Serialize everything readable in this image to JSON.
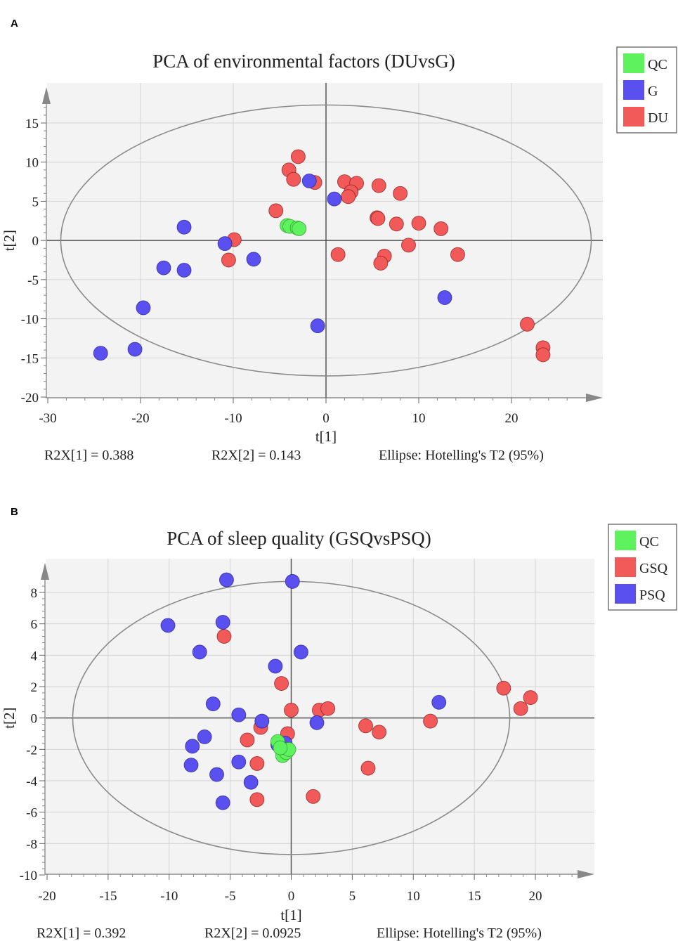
{
  "chart_data": [
    {
      "panel": "A",
      "type": "scatter",
      "title": "PCA of environmental factors (DUvsG)",
      "xlabel": "t[1]",
      "ylabel": "t[2]",
      "xlim": [
        -30,
        30
      ],
      "ylim": [
        -20,
        17
      ],
      "xticks": [
        -30,
        -20,
        -10,
        0,
        10,
        20
      ],
      "yticks": [
        -20,
        -15,
        -10,
        -5,
        0,
        5,
        10,
        15
      ],
      "ellipse": {
        "rx": 28.6,
        "ry": 17.3
      },
      "footer": [
        "R2X[1] = 0.388",
        "R2X[2] = 0.143",
        "Ellipse: Hotelling's T2 (95%)"
      ],
      "legend": [
        {
          "name": "QC",
          "color": "#5ef35e"
        },
        {
          "name": "G",
          "color": "#5a50f0"
        },
        {
          "name": "DU",
          "color": "#f25a5a"
        }
      ],
      "series": [
        {
          "name": "DU",
          "color": "#f25a5a",
          "points": [
            [
              -3,
              10.7
            ],
            [
              -4,
              9
            ],
            [
              -3.5,
              7.8
            ],
            [
              -1.2,
              7.4
            ],
            [
              2,
              7.5
            ],
            [
              3.3,
              7.3
            ],
            [
              2.7,
              6.2
            ],
            [
              2.4,
              5.6
            ],
            [
              5.7,
              7
            ],
            [
              8,
              6
            ],
            [
              -5.4,
              3.8
            ],
            [
              5.5,
              2.9
            ],
            [
              5.6,
              2.8
            ],
            [
              7.6,
              2.1
            ],
            [
              10,
              2.2
            ],
            [
              12.4,
              1.5
            ],
            [
              -9.9,
              0.1
            ],
            [
              -10.5,
              -2.5
            ],
            [
              8.9,
              -0.6
            ],
            [
              1.3,
              -1.8
            ],
            [
              6.3,
              -2
            ],
            [
              5.9,
              -2.9
            ],
            [
              14.2,
              -1.8
            ],
            [
              21.7,
              -10.7
            ],
            [
              23.4,
              -13.7
            ],
            [
              23.4,
              -14.6
            ]
          ]
        },
        {
          "name": "G",
          "color": "#5a50f0",
          "points": [
            [
              -1.8,
              7.6
            ],
            [
              0.9,
              5.3
            ],
            [
              -15.3,
              1.7
            ],
            [
              -10.9,
              -0.4
            ],
            [
              -7.8,
              -2.4
            ],
            [
              -17.5,
              -3.5
            ],
            [
              -15.3,
              -3.8
            ],
            [
              -19.7,
              -8.6
            ],
            [
              -0.9,
              -10.9
            ],
            [
              12.8,
              -7.3
            ],
            [
              -24.3,
              -14.4
            ],
            [
              -20.6,
              -13.9
            ]
          ]
        },
        {
          "name": "QC",
          "color": "#5ef35e",
          "points": [
            [
              -4.2,
              1.9
            ],
            [
              -3.9,
              1.8
            ],
            [
              -3.1,
              1.6
            ],
            [
              -2.9,
              1.5
            ]
          ]
        }
      ]
    },
    {
      "panel": "B",
      "type": "scatter",
      "title": "PCA of sleep quality (GSQvsPSQ)",
      "xlabel": "t[1]",
      "ylabel": "t[2]",
      "xlim": [
        -20,
        24
      ],
      "ylim": [
        -10,
        9.6
      ],
      "xticks": [
        -20,
        -15,
        -10,
        -5,
        0,
        5,
        10,
        15,
        20
      ],
      "yticks": [
        -10,
        -8,
        -6,
        -4,
        -2,
        0,
        2,
        4,
        6,
        8
      ],
      "ellipse": {
        "rx": 17.9,
        "ry": 8.7
      },
      "footer": [
        "R2X[1] = 0.392",
        "R2X[2] = 0.0925",
        "Ellipse: Hotelling's T2 (95%)"
      ],
      "legend": [
        {
          "name": "QC",
          "color": "#5ef35e"
        },
        {
          "name": "GSQ",
          "color": "#f25a5a"
        },
        {
          "name": "PSQ",
          "color": "#5a50f0"
        }
      ],
      "series": [
        {
          "name": "GSQ",
          "color": "#f25a5a",
          "points": [
            [
              -5.5,
              5.2
            ],
            [
              -0.8,
              2.2
            ],
            [
              0,
              0.5
            ],
            [
              2.3,
              0.5
            ],
            [
              3,
              0.6
            ],
            [
              -2.5,
              -0.6
            ],
            [
              -0.3,
              -1
            ],
            [
              -3.6,
              -1.4
            ],
            [
              -2.8,
              -2.9
            ],
            [
              -2.8,
              -5.2
            ],
            [
              1.8,
              -5
            ],
            [
              6.1,
              -0.5
            ],
            [
              7.2,
              -0.9
            ],
            [
              6.3,
              -3.2
            ],
            [
              11.4,
              -0.2
            ],
            [
              17.4,
              1.9
            ],
            [
              19.6,
              1.3
            ],
            [
              18.8,
              0.6
            ]
          ]
        },
        {
          "name": "PSQ",
          "color": "#5a50f0",
          "points": [
            [
              -5.3,
              8.8
            ],
            [
              0.1,
              8.7
            ],
            [
              -10.1,
              5.9
            ],
            [
              -5.6,
              6.1
            ],
            [
              -7.5,
              4.2
            ],
            [
              -1.3,
              3.3
            ],
            [
              0.8,
              4.2
            ],
            [
              -6.4,
              0.9
            ],
            [
              -4.3,
              0.2
            ],
            [
              -2.4,
              -0.2
            ],
            [
              2.1,
              -0.3
            ],
            [
              12.1,
              1
            ],
            [
              -7.1,
              -1.2
            ],
            [
              -8.1,
              -1.8
            ],
            [
              -1.1,
              -1.7
            ],
            [
              -0.5,
              -1.6
            ],
            [
              -8.2,
              -3
            ],
            [
              -4.3,
              -2.8
            ],
            [
              -6.1,
              -3.6
            ],
            [
              -3.3,
              -4.1
            ],
            [
              -5.6,
              -5.4
            ]
          ]
        },
        {
          "name": "QC",
          "color": "#5ef35e",
          "points": [
            [
              -1.1,
              -1.5
            ],
            [
              -0.7,
              -2.4
            ],
            [
              -0.4,
              -2.2
            ],
            [
              -0.2,
              -2
            ],
            [
              -0.9,
              -1.9
            ]
          ]
        }
      ]
    }
  ]
}
